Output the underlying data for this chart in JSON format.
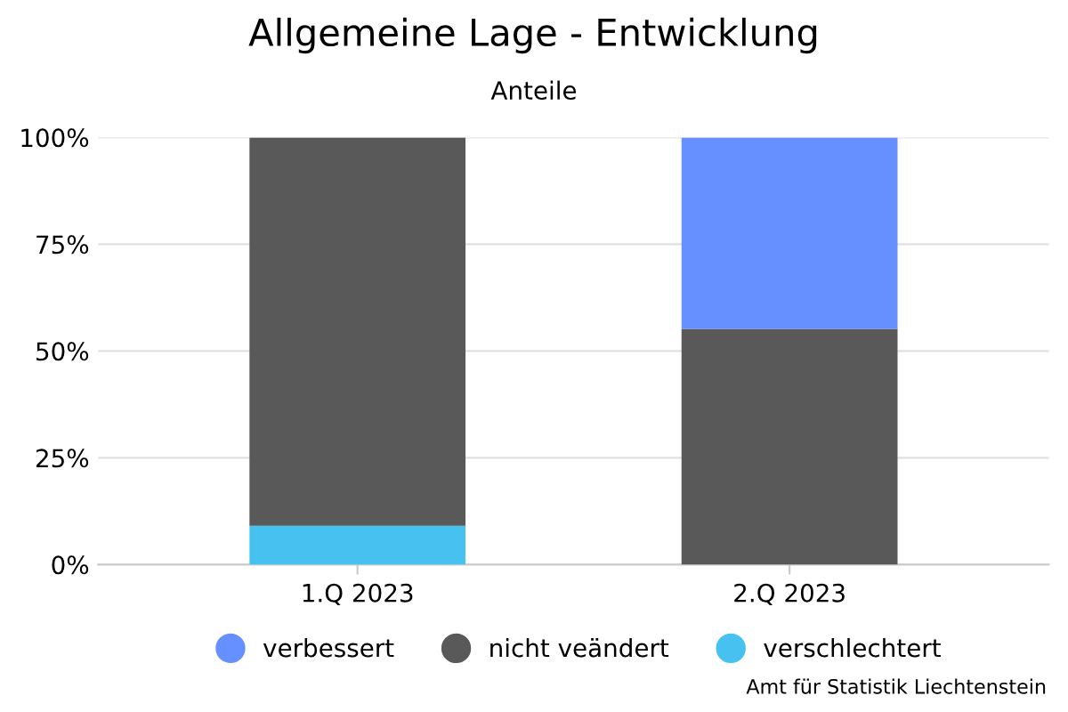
{
  "chart_data": {
    "type": "bar",
    "title": "Allgemeine Lage - Entwicklung",
    "subtitle": "Anteile",
    "categories": [
      "1.Q 2023",
      "2.Q 2023"
    ],
    "series": [
      {
        "name": "verschlechtert",
        "color": "#47c1f0",
        "values": [
          9.1,
          0
        ]
      },
      {
        "name": "nicht veändert",
        "color": "#595959",
        "values": [
          90.9,
          55.2
        ]
      },
      {
        "name": "verbessert",
        "color": "#6690ff",
        "values": [
          0,
          44.8
        ]
      }
    ],
    "stacked": true,
    "ylim": [
      0,
      100
    ],
    "yticks": [
      {
        "value": 0,
        "label": "0%"
      },
      {
        "value": 25,
        "label": "25%"
      },
      {
        "value": 50,
        "label": "50%"
      },
      {
        "value": 75,
        "label": "75%"
      },
      {
        "value": 100,
        "label": "100%"
      }
    ],
    "grid": "y",
    "legend": "bottom",
    "marker": "circle",
    "annotations": [
      "Amt für Statistik Liechtenstein"
    ]
  }
}
